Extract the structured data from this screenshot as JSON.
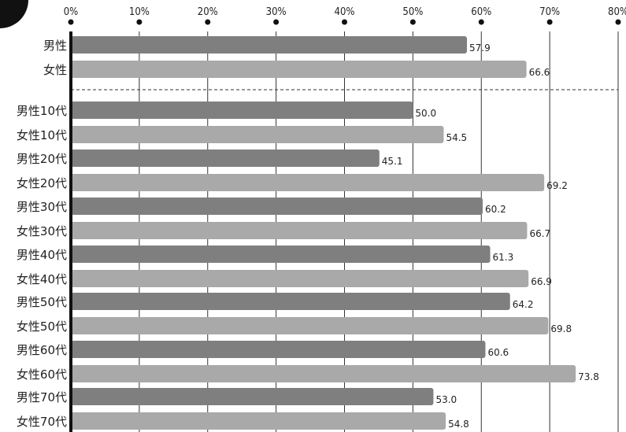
{
  "chart_data": {
    "type": "bar",
    "orientation": "horizontal",
    "xlim": [
      0,
      80
    ],
    "ticks": [
      "0%",
      "10%",
      "20%",
      "30%",
      "40%",
      "50%",
      "60%",
      "70%",
      "80%"
    ],
    "tick_values": [
      0,
      10,
      20,
      30,
      40,
      50,
      60,
      70,
      80
    ],
    "grid": true,
    "colors": {
      "male": "#7f7f7f",
      "female": "#a9a9a9"
    },
    "groups": [
      {
        "bars": [
          {
            "label": "男性",
            "value": 57.9,
            "value_label": "57.9",
            "series": "male"
          },
          {
            "label": "女性",
            "value": 66.6,
            "value_label": "66.6",
            "series": "female"
          }
        ]
      },
      {
        "bars": [
          {
            "label": "男性10代",
            "value": 50.0,
            "value_label": "50.0",
            "series": "male"
          },
          {
            "label": "女性10代",
            "value": 54.5,
            "value_label": "54.5",
            "series": "female"
          }
        ]
      },
      {
        "bars": [
          {
            "label": "男性20代",
            "value": 45.1,
            "value_label": "45.1",
            "series": "male"
          },
          {
            "label": "女性20代",
            "value": 69.2,
            "value_label": "69.2",
            "series": "female"
          }
        ]
      },
      {
        "bars": [
          {
            "label": "男性30代",
            "value": 60.2,
            "value_label": "60.2",
            "series": "male"
          },
          {
            "label": "女性30代",
            "value": 66.7,
            "value_label": "66.7",
            "series": "female"
          }
        ]
      },
      {
        "bars": [
          {
            "label": "男性40代",
            "value": 61.3,
            "value_label": "61.3",
            "series": "male"
          },
          {
            "label": "女性40代",
            "value": 66.9,
            "value_label": "66.9",
            "series": "female"
          }
        ]
      },
      {
        "bars": [
          {
            "label": "男性50代",
            "value": 64.2,
            "value_label": "64.2",
            "series": "male"
          },
          {
            "label": "女性50代",
            "value": 69.8,
            "value_label": "69.8",
            "series": "female"
          }
        ]
      },
      {
        "bars": [
          {
            "label": "男性60代",
            "value": 60.6,
            "value_label": "60.6",
            "series": "male"
          },
          {
            "label": "女性60代",
            "value": 73.8,
            "value_label": "73.8",
            "series": "female"
          }
        ]
      },
      {
        "bars": [
          {
            "label": "男性70代",
            "value": 53.0,
            "value_label": "53.0",
            "series": "male"
          },
          {
            "label": "女性70代",
            "value": 54.8,
            "value_label": "54.8",
            "series": "female"
          }
        ]
      }
    ]
  }
}
